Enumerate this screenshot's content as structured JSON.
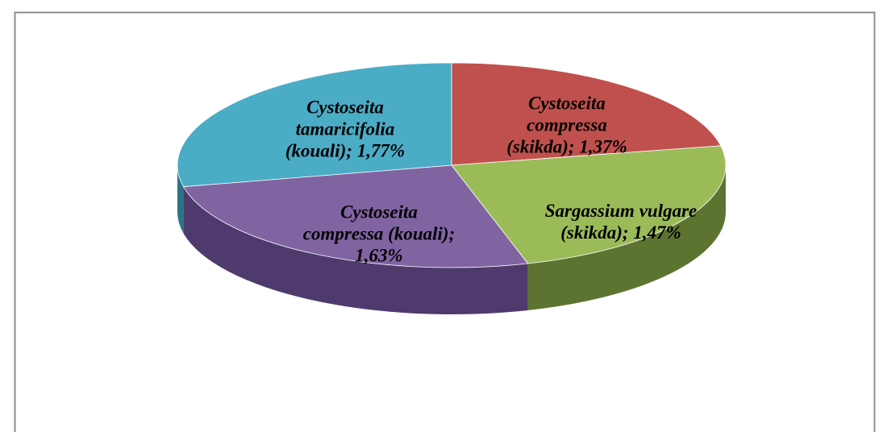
{
  "chart_data": {
    "type": "pie",
    "values": [
      1.37,
      1.47,
      1.63,
      1.77
    ],
    "value_labels": [
      "Cystoseita compressa (skikda); 1,37%",
      "Sargassium vulgare (skikda); 1,47%",
      "Cystoseita compressa (kouali); 1,63%",
      "Cystoseita tamaricifolia (kouali); 1,77%"
    ],
    "colors": [
      "#c0504d",
      "#9bbb59",
      "#8064a2",
      "#4bacc6"
    ],
    "side_colors": [
      "#8a3533",
      "#5d7430",
      "#4e3a6c",
      "#2d7388"
    ]
  }
}
